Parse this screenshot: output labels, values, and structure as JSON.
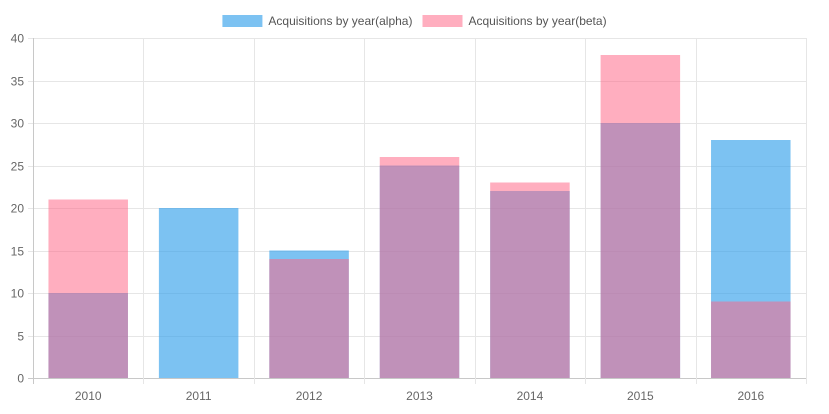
{
  "chart_data": {
    "type": "bar",
    "categories": [
      "2010",
      "2011",
      "2012",
      "2013",
      "2014",
      "2015",
      "2016"
    ],
    "series": [
      {
        "name": "Acquisitions by year(alpha)",
        "values": [
          10,
          20,
          15,
          25,
          22,
          30,
          28
        ],
        "color": "#36a2eb",
        "fill": "rgba(54,162,235,0.65)"
      },
      {
        "name": "Acquisitions by year(beta)",
        "values": [
          21,
          0,
          14,
          26,
          23,
          38,
          9
        ],
        "color": "#ff6384",
        "fill": "rgba(255,99,132,0.52)"
      }
    ],
    "stacked": false,
    "overlapping": true,
    "ylim": [
      0,
      40
    ],
    "yticks": [
      0,
      5,
      10,
      15,
      20,
      25,
      30,
      35,
      40
    ],
    "grid": true,
    "legend_position": "top"
  }
}
